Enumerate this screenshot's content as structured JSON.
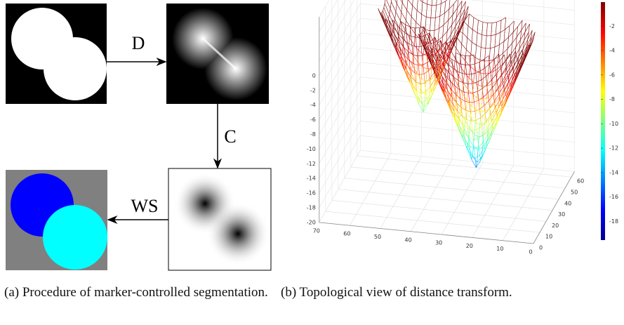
{
  "figure_a": {
    "labels": {
      "d": "D",
      "c": "C",
      "ws": "WS"
    },
    "caption": "(a) Procedure of marker-controlled segmentation."
  },
  "figure_b": {
    "caption": "(b) Topological view of distance transform.",
    "z_ticks": [
      0,
      -2,
      -4,
      -6,
      -8,
      -10,
      -12,
      -14,
      -16,
      -18,
      -20
    ],
    "x_ticks": [
      70,
      60,
      50,
      40,
      30,
      20,
      10,
      0
    ],
    "y_ticks": [
      0,
      10,
      20,
      30,
      40,
      50,
      60
    ],
    "colorbar_ticks": [
      -2,
      -4,
      -6,
      -8,
      -10,
      -12,
      -14,
      -16,
      -18
    ]
  }
}
